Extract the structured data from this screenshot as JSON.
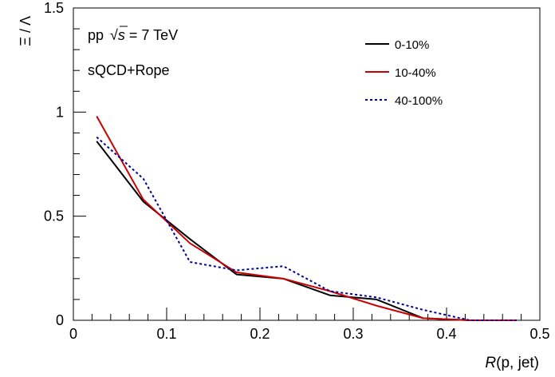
{
  "chart_data": {
    "type": "line",
    "ylabel": "Ξ / Λ",
    "xlabel_var": "R",
    "xlabel_rest": "(p, jet)",
    "xlim": [
      0,
      0.5
    ],
    "ylim": [
      0,
      1.5
    ],
    "x_ticks": [
      0,
      0.1,
      0.2,
      0.3,
      0.4,
      0.5
    ],
    "x_tick_labels": [
      "0",
      "0.1",
      "0.2",
      "0.3",
      "0.4",
      "0.5"
    ],
    "y_ticks": [
      0,
      0.5,
      1,
      1.5
    ],
    "y_tick_labels": [
      "0",
      "0.5",
      "1",
      "1.5"
    ],
    "annotations": {
      "system": "pp",
      "sqrt_symbol": "√",
      "s_var": "s",
      "energy": "= 7 TeV",
      "model": "sQCD+Rope"
    },
    "legend_position": "top-right",
    "x": [
      0.025,
      0.075,
      0.125,
      0.175,
      0.225,
      0.275,
      0.325,
      0.375,
      0.425,
      0.475
    ],
    "series": [
      {
        "name": "0-10%",
        "color": "#000000",
        "style": "solid",
        "values": [
          0.86,
          0.57,
          0.39,
          0.22,
          0.2,
          0.12,
          0.1,
          0.01,
          0.0,
          0.0
        ]
      },
      {
        "name": "10-40%",
        "color": "#cc0000",
        "style": "solid",
        "values": [
          0.98,
          0.58,
          0.37,
          0.23,
          0.2,
          0.14,
          0.07,
          0.01,
          0.0,
          0.0
        ]
      },
      {
        "name": "40-100%",
        "color": "#00009a",
        "style": "dotted",
        "values": [
          0.88,
          0.68,
          0.28,
          0.24,
          0.26,
          0.14,
          0.11,
          0.05,
          0.0,
          0.0
        ]
      }
    ]
  }
}
